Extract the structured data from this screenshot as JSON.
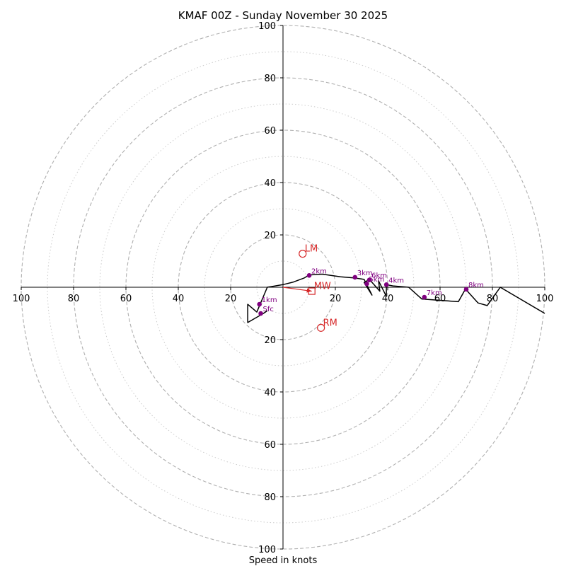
{
  "chart_data": {
    "type": "hodograph",
    "title": "KMAF 00Z - Sunday November 30 2025",
    "xlabel": "Speed in knots",
    "units": "knots",
    "ring_max": 100,
    "ring_labels_major": [
      "20",
      "40",
      "60",
      "80",
      "100"
    ],
    "major_rings": [
      20,
      40,
      60,
      80,
      100
    ],
    "minor_rings": [
      10,
      30,
      50,
      70,
      90
    ],
    "grid": true,
    "colors": {
      "trace": "#000000",
      "height_marker": "#800080",
      "motion": "#d62728",
      "major_grid": "#b0b0b0",
      "minor_grid": "#cccccc"
    },
    "trace": [
      [
        -6,
        -9
      ],
      [
        -7.5,
        -10
      ],
      [
        -13.5,
        -13.5
      ],
      [
        -13.5,
        -6.5
      ],
      [
        -10,
        -9.5
      ],
      [
        -6,
        0
      ],
      [
        0,
        1
      ],
      [
        4,
        2
      ],
      [
        8,
        3.5
      ],
      [
        10,
        4.7
      ],
      [
        15,
        5
      ],
      [
        22,
        4
      ],
      [
        27,
        3.6
      ],
      [
        31,
        3
      ],
      [
        34,
        -3
      ],
      [
        31,
        1.8
      ],
      [
        33,
        3
      ],
      [
        37,
        -1.5
      ],
      [
        36.5,
        2.5
      ],
      [
        39.5,
        -3.5
      ],
      [
        39.5,
        1
      ],
      [
        42,
        0.5
      ],
      [
        48,
        0
      ],
      [
        53,
        -4.5
      ],
      [
        60,
        -5
      ],
      [
        67,
        -5.5
      ],
      [
        69.5,
        -1
      ],
      [
        70,
        -1
      ],
      [
        74.5,
        -6
      ],
      [
        78,
        -7
      ],
      [
        83,
        0
      ],
      [
        100,
        -10
      ]
    ],
    "height_markers": [
      {
        "label": "Sfc",
        "u": -8.5,
        "v": -10
      },
      {
        "label": "1km",
        "u": -9,
        "v": -6.5
      },
      {
        "label": "2km",
        "u": 10,
        "v": 4.5
      },
      {
        "label": "3km",
        "u": 27.5,
        "v": 3.8
      },
      {
        "label": "4km",
        "u": 39.5,
        "v": 1
      },
      {
        "label": "5km",
        "u": 32,
        "v": 1.3
      },
      {
        "label": "6km",
        "u": 33,
        "v": 2.8
      },
      {
        "label": "7km",
        "u": 54,
        "v": -3.8
      },
      {
        "label": "8km",
        "u": 70,
        "v": -0.8
      }
    ],
    "storm_motion": [
      {
        "label": "LM",
        "u": 7.5,
        "v": 12.8,
        "marker": "circle"
      },
      {
        "label": "RM",
        "u": 14.5,
        "v": -15.5,
        "marker": "circle"
      },
      {
        "label": "MW",
        "u": 11,
        "v": -1.5,
        "marker": "square"
      }
    ],
    "shear_vector": {
      "from": [
        0,
        0
      ],
      "to": [
        11,
        -1.5
      ]
    }
  }
}
